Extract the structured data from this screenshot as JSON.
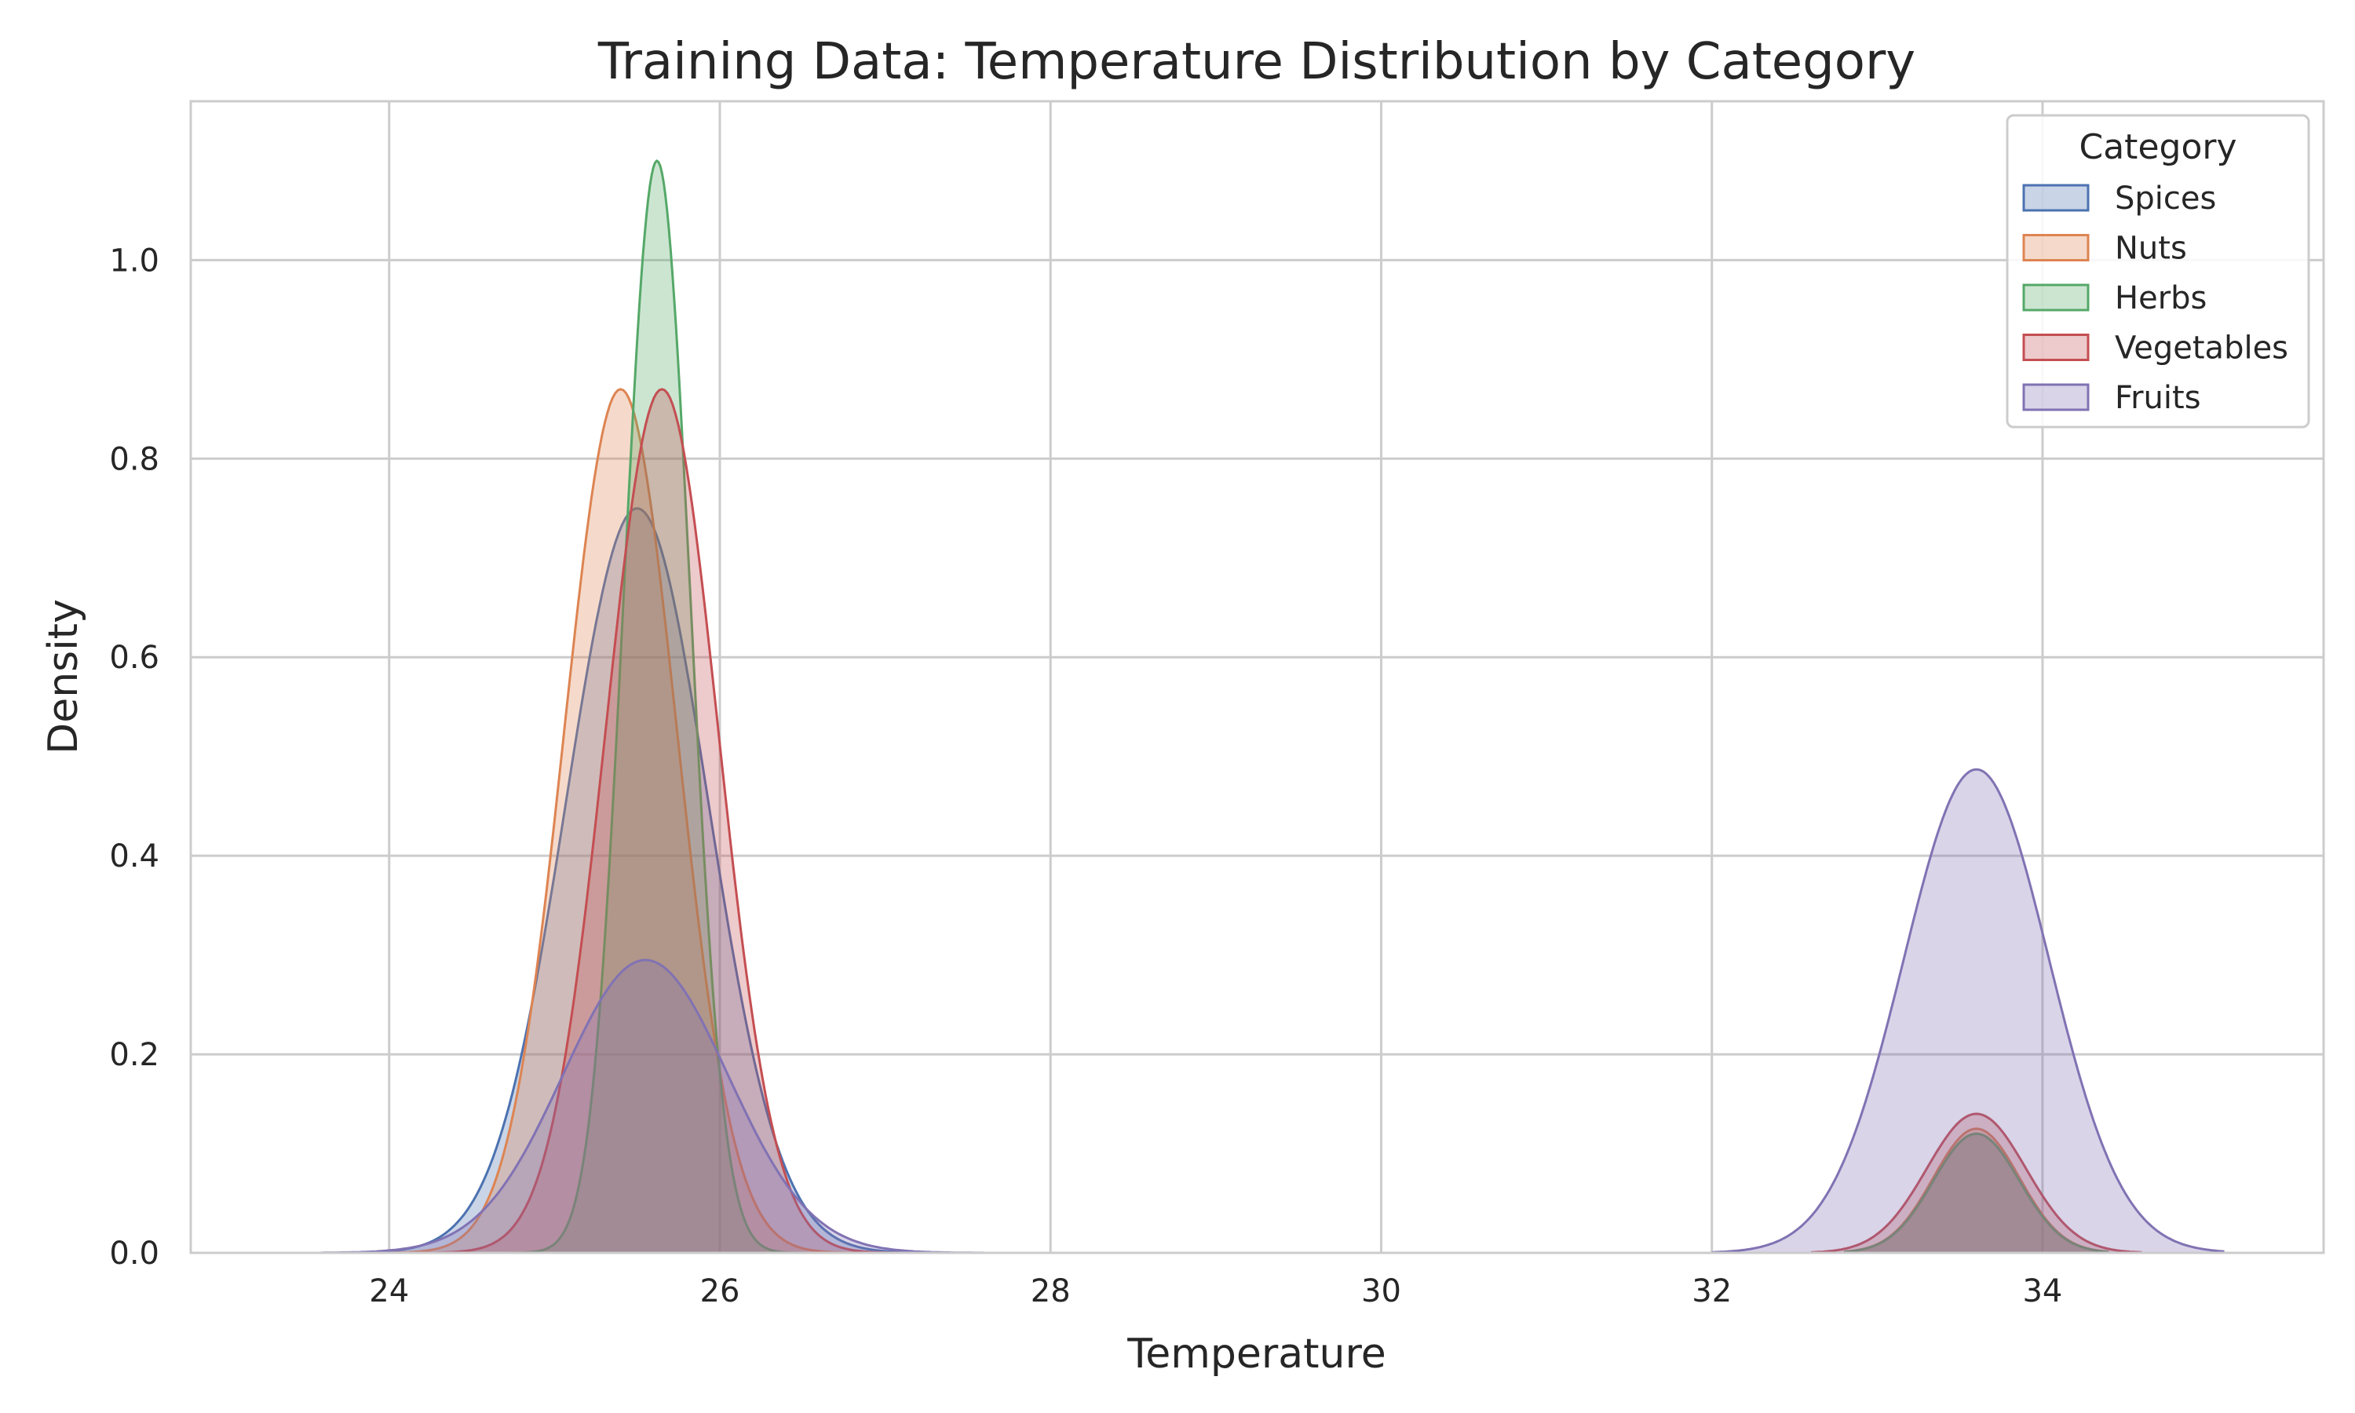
{
  "chart_data": {
    "type": "area",
    "title": "Training Data: Temperature Distribution by Category",
    "xlabel": "Temperature",
    "ylabel": "Density",
    "xlim": [
      22.8,
      35.7
    ],
    "ylim": [
      0,
      1.16
    ],
    "xticks": [
      "24",
      "26",
      "28",
      "30",
      "32",
      "34"
    ],
    "yticks": [
      "0.0",
      "0.2",
      "0.4",
      "0.6",
      "0.8",
      "1.0"
    ],
    "grid": true,
    "legend": {
      "title": "Category",
      "placement": "top-right"
    },
    "series": [
      {
        "name": "Spices",
        "color": "#4c72b0",
        "components": [
          {
            "mu": 25.5,
            "sigma": 0.43,
            "peak": 0.75,
            "from": 23.4,
            "to": 27.3
          },
          {
            "mu": 33.6,
            "sigma": 0.26,
            "peak": 0.12,
            "from": 32.8,
            "to": 34.4
          }
        ]
      },
      {
        "name": "Nuts",
        "color": "#dd8452",
        "components": [
          {
            "mu": 25.4,
            "sigma": 0.34,
            "peak": 0.87,
            "from": 23.8,
            "to": 27.0
          },
          {
            "mu": 33.6,
            "sigma": 0.26,
            "peak": 0.125,
            "from": 32.8,
            "to": 34.4
          }
        ]
      },
      {
        "name": "Herbs",
        "color": "#55a868",
        "components": [
          {
            "mu": 25.62,
            "sigma": 0.2,
            "peak": 1.1,
            "from": 24.6,
            "to": 26.7
          },
          {
            "mu": 33.6,
            "sigma": 0.26,
            "peak": 0.12,
            "from": 32.8,
            "to": 34.4
          }
        ]
      },
      {
        "name": "Vegetables",
        "color": "#c44e52",
        "components": [
          {
            "mu": 25.65,
            "sigma": 0.34,
            "peak": 0.87,
            "from": 24.0,
            "to": 27.3
          },
          {
            "mu": 33.6,
            "sigma": 0.3,
            "peak": 0.14,
            "from": 32.6,
            "to": 34.6
          }
        ]
      },
      {
        "name": "Fruits",
        "color": "#8172b3",
        "components": [
          {
            "mu": 25.55,
            "sigma": 0.5,
            "peak": 0.295,
            "from": 23.6,
            "to": 27.6
          },
          {
            "mu": 33.6,
            "sigma": 0.44,
            "peak": 0.487,
            "from": 32.0,
            "to": 35.1
          }
        ]
      }
    ]
  }
}
